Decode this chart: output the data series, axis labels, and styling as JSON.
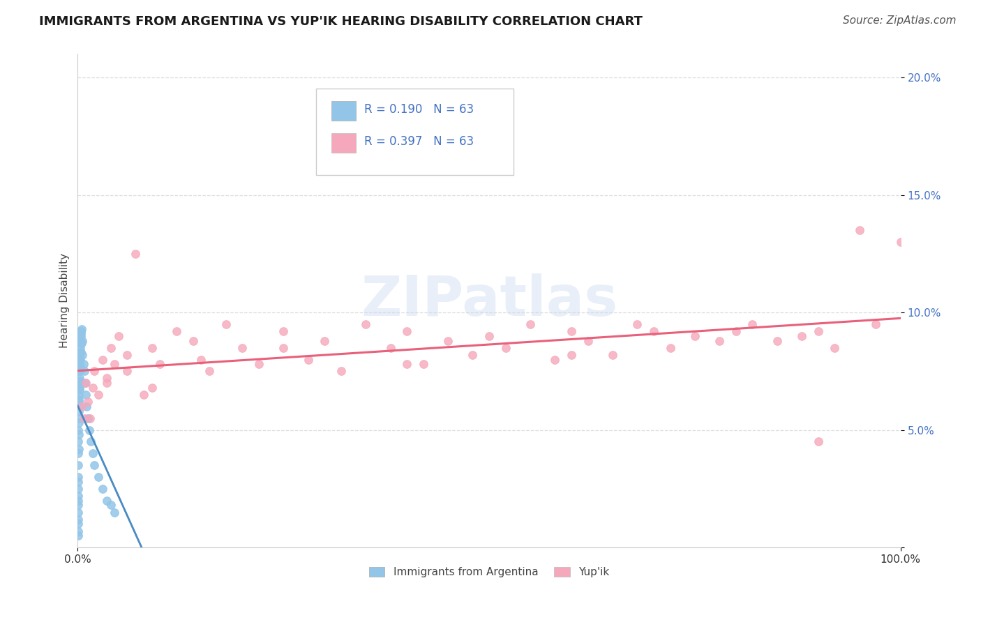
{
  "title": "IMMIGRANTS FROM ARGENTINA VS YUP'IK HEARING DISABILITY CORRELATION CHART",
  "source": "Source: ZipAtlas.com",
  "ylabel": "Hearing Disability",
  "R_argentina": 0.19,
  "N_argentina": 63,
  "R_yupik": 0.397,
  "N_yupik": 63,
  "color_argentina": "#92C5E8",
  "color_yupik": "#F5A8BB",
  "trendline_argentina_solid_color": "#4A8BC4",
  "trendline_argentina_dashed_color": "#7AAEDD",
  "trendline_yupik_color": "#E8607A",
  "watermark": "ZIPatlas",
  "argentina_x": [
    0.0005,
    0.0005,
    0.0005,
    0.0005,
    0.0005,
    0.0005,
    0.0005,
    0.0005,
    0.0005,
    0.0005,
    0.0008,
    0.0008,
    0.001,
    0.001,
    0.001,
    0.0012,
    0.0012,
    0.0015,
    0.0015,
    0.0018,
    0.0018,
    0.002,
    0.002,
    0.0022,
    0.0025,
    0.0025,
    0.0028,
    0.003,
    0.003,
    0.0035,
    0.0035,
    0.004,
    0.0045,
    0.005,
    0.0055,
    0.006,
    0.007,
    0.008,
    0.009,
    0.01,
    0.011,
    0.012,
    0.014,
    0.016,
    0.018,
    0.02,
    0.025,
    0.03,
    0.035,
    0.04,
    0.045,
    0.0007,
    0.0006,
    0.0009,
    0.0011,
    0.0013,
    0.0016,
    0.0019,
    0.0023,
    0.0027,
    0.0032,
    0.0038,
    0.0042
  ],
  "argentina_y": [
    0.03,
    0.025,
    0.022,
    0.02,
    0.018,
    0.015,
    0.012,
    0.01,
    0.007,
    0.005,
    0.05,
    0.045,
    0.06,
    0.055,
    0.042,
    0.065,
    0.058,
    0.07,
    0.062,
    0.075,
    0.068,
    0.078,
    0.072,
    0.08,
    0.082,
    0.075,
    0.085,
    0.088,
    0.08,
    0.09,
    0.083,
    0.092,
    0.087,
    0.093,
    0.088,
    0.082,
    0.078,
    0.075,
    0.07,
    0.065,
    0.06,
    0.055,
    0.05,
    0.045,
    0.04,
    0.035,
    0.03,
    0.025,
    0.02,
    0.018,
    0.015,
    0.035,
    0.028,
    0.04,
    0.048,
    0.053,
    0.063,
    0.067,
    0.071,
    0.077,
    0.083,
    0.087,
    0.091
  ],
  "yupik_x": [
    0.005,
    0.008,
    0.01,
    0.012,
    0.015,
    0.018,
    0.02,
    0.025,
    0.03,
    0.035,
    0.04,
    0.045,
    0.05,
    0.06,
    0.07,
    0.08,
    0.09,
    0.1,
    0.12,
    0.14,
    0.16,
    0.18,
    0.2,
    0.22,
    0.25,
    0.28,
    0.3,
    0.32,
    0.35,
    0.38,
    0.4,
    0.42,
    0.45,
    0.48,
    0.5,
    0.52,
    0.55,
    0.58,
    0.6,
    0.62,
    0.65,
    0.68,
    0.7,
    0.72,
    0.75,
    0.78,
    0.8,
    0.82,
    0.85,
    0.88,
    0.9,
    0.92,
    0.95,
    0.97,
    1.0,
    0.035,
    0.06,
    0.09,
    0.15,
    0.25,
    0.4,
    0.6,
    0.9
  ],
  "yupik_y": [
    0.06,
    0.055,
    0.07,
    0.062,
    0.055,
    0.068,
    0.075,
    0.065,
    0.08,
    0.072,
    0.085,
    0.078,
    0.09,
    0.082,
    0.125,
    0.065,
    0.085,
    0.078,
    0.092,
    0.088,
    0.075,
    0.095,
    0.085,
    0.078,
    0.092,
    0.08,
    0.088,
    0.075,
    0.095,
    0.085,
    0.092,
    0.078,
    0.088,
    0.082,
    0.09,
    0.085,
    0.095,
    0.08,
    0.092,
    0.088,
    0.082,
    0.095,
    0.092,
    0.085,
    0.09,
    0.088,
    0.092,
    0.095,
    0.088,
    0.09,
    0.092,
    0.085,
    0.135,
    0.095,
    0.13,
    0.07,
    0.075,
    0.068,
    0.08,
    0.085,
    0.078,
    0.082,
    0.045
  ],
  "xlim": [
    0.0,
    1.0
  ],
  "ylim": [
    0.0,
    0.21
  ],
  "xtick_positions": [
    0.0,
    1.0
  ],
  "xtick_labels": [
    "0.0%",
    "100.0%"
  ],
  "ytick_positions": [
    0.0,
    0.05,
    0.1,
    0.15,
    0.2
  ],
  "ytick_labels": [
    "",
    "5.0%",
    "10.0%",
    "15.0%",
    "20.0%"
  ],
  "grid_yticks": [
    0.05,
    0.1,
    0.15,
    0.2
  ],
  "grid_color": "#DDDDDD",
  "background_color": "#FFFFFF",
  "title_fontsize": 13,
  "axis_label_fontsize": 11,
  "tick_fontsize": 11,
  "legend_fontsize": 12,
  "source_fontsize": 11
}
